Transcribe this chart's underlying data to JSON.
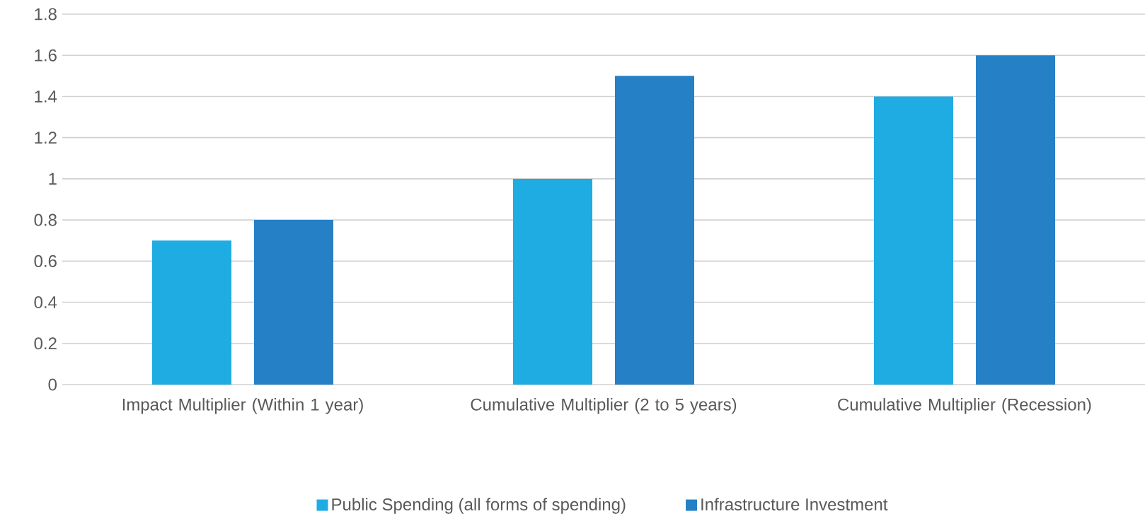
{
  "chart_data": {
    "type": "bar",
    "categories": [
      "Impact Multiplier (Within 1 year)",
      "Cumulative Multiplier (2 to 5 years)",
      "Cumulative Multiplier (Recession)"
    ],
    "series": [
      {
        "name": "Public Spending (all forms of spending)",
        "color": "#1eace3",
        "values": [
          0.7,
          1.0,
          1.4
        ]
      },
      {
        "name": "Infrastructure Investment",
        "color": "#2680c6",
        "values": [
          0.8,
          1.5,
          1.6
        ]
      }
    ],
    "ylim": [
      0,
      1.8
    ],
    "yticks": [
      0,
      0.2,
      0.4,
      0.6,
      0.8,
      1,
      1.2,
      1.4,
      1.6,
      1.8
    ],
    "grid": "y",
    "legend": "bottom"
  }
}
